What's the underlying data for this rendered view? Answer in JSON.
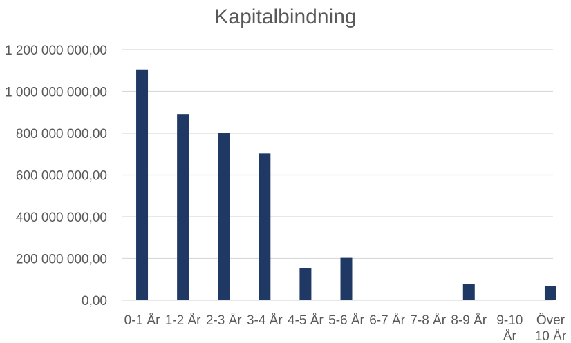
{
  "chart_data": {
    "type": "bar",
    "title": "Kapitalbindning",
    "categories": [
      "0-1 År",
      "1-2 År",
      "2-3 År",
      "3-4 År",
      "4-5 År",
      "5-6 År",
      "6-7 År",
      "7-8 År",
      "8-9 År",
      "9-10 År",
      "Över 10 År"
    ],
    "category_label_lines": [
      [
        "0-1 År"
      ],
      [
        "1-2 År"
      ],
      [
        "2-3 År"
      ],
      [
        "3-4 År"
      ],
      [
        "4-5 År"
      ],
      [
        "5-6 År"
      ],
      [
        "6-7 År"
      ],
      [
        "7-8 År"
      ],
      [
        "8-9 År"
      ],
      [
        "9-10",
        "År"
      ],
      [
        "Över",
        "10 År"
      ]
    ],
    "values": [
      1105000000,
      892000000,
      800000000,
      703000000,
      152000000,
      203000000,
      0,
      0,
      78000000,
      0,
      68000000
    ],
    "ylim": [
      0,
      1200000000
    ],
    "yticks": [
      0,
      200000000,
      400000000,
      600000000,
      800000000,
      1000000000,
      1200000000
    ],
    "ytick_labels": [
      "0,00",
      "200 000 000,00",
      "400 000 000,00",
      "600 000 000,00",
      "800 000 000,00",
      "1 000 000 000,00",
      "1 200 000 000,00"
    ],
    "xlabel": "",
    "ylabel": "",
    "grid": true,
    "colors": {
      "bar": "#1f3864",
      "grid": "#d9d9d9",
      "text": "#595959"
    }
  }
}
